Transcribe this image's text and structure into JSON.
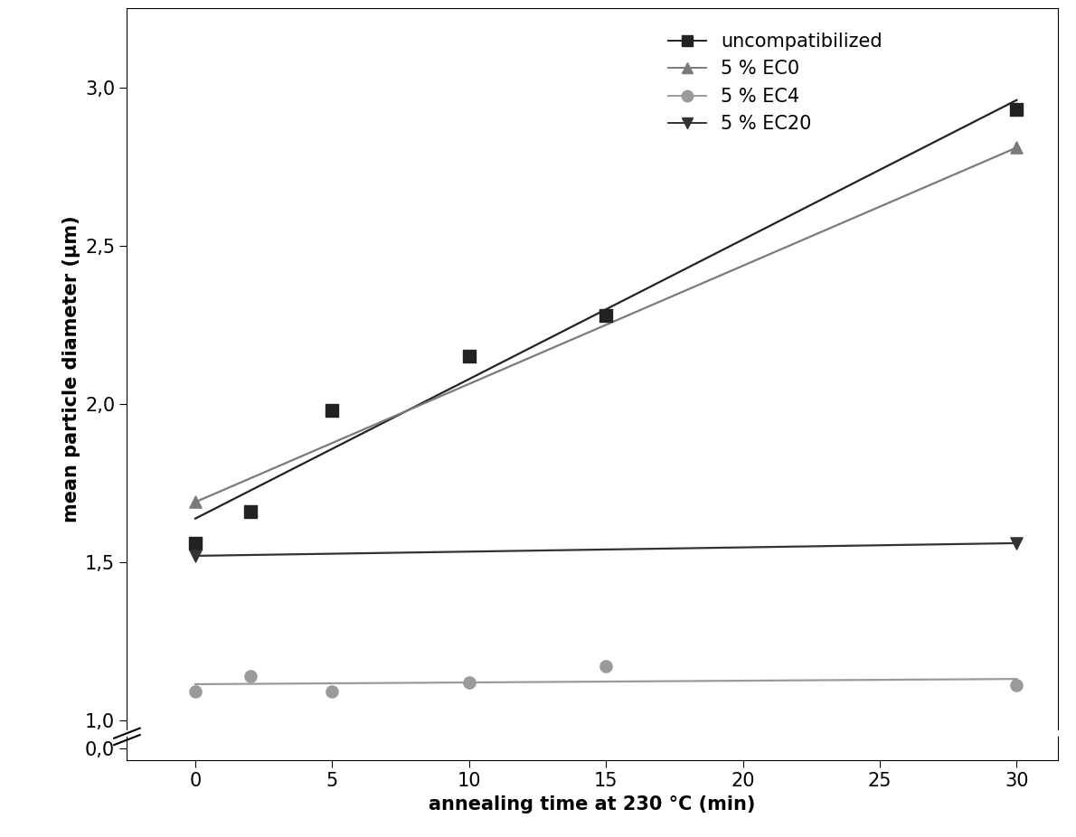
{
  "chart_data": [
    {
      "type": "scatter",
      "ylabel": "mean particle diameter (µm)",
      "xlim": [
        -2.5,
        31.5
      ],
      "ylim": [
        0.97,
        3.25
      ],
      "yticks": [
        {
          "value": 1.0,
          "label": "1,0"
        },
        {
          "value": 1.5,
          "label": "1,5"
        },
        {
          "value": 2.0,
          "label": "2,0"
        },
        {
          "value": 2.5,
          "label": "2,5"
        },
        {
          "value": 3.0,
          "label": "3,0"
        }
      ],
      "tick_labels": "y",
      "legend": "upper right",
      "series": [
        {
          "name": "uncompatibilized",
          "color": "#222222",
          "marker": "square",
          "x": [
            0,
            2,
            5,
            10,
            15,
            30
          ],
          "values": [
            1.56,
            1.66,
            1.98,
            2.15,
            2.28,
            2.93
          ]
        },
        {
          "name": "5 % EC0",
          "color": "#7a7a7a",
          "marker": "triangle_up",
          "x": [
            0,
            30
          ],
          "values": [
            1.69,
            2.81
          ]
        },
        {
          "name": "5 % EC4",
          "color": "#9a9a9a",
          "marker": "circle",
          "x": [
            0,
            2,
            5,
            10,
            15,
            30
          ],
          "values": [
            1.09,
            1.14,
            1.09,
            1.12,
            1.17,
            1.11
          ]
        },
        {
          "name": "5 % EC20",
          "color": "#333333",
          "marker": "triangle_down",
          "x": [
            0,
            30
          ],
          "values": [
            1.52,
            1.56
          ]
        }
      ]
    },
    {
      "type": "line",
      "xlabel": "annealing time at 230 °C (min)",
      "xlim": [
        -2.5,
        31.5
      ],
      "xticks": [
        0,
        5,
        10,
        15,
        20,
        25,
        30
      ],
      "ylim": [
        -0.03,
        0.03
      ],
      "yticks": [
        {
          "value": 0.0,
          "label": "0,0"
        }
      ]
    }
  ]
}
